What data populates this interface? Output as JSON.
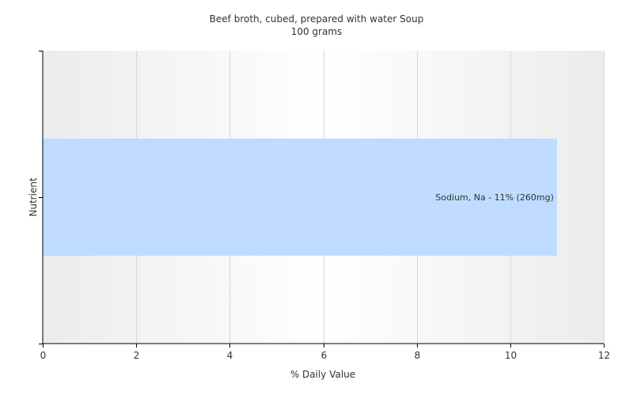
{
  "chart_data": {
    "type": "bar",
    "orientation": "horizontal",
    "title": "Beef broth, cubed, prepared with water Soup",
    "subtitle": "100 grams",
    "xlabel": "% Daily Value",
    "ylabel": "Nutrient",
    "xlim": [
      0,
      12
    ],
    "xticks": [
      0,
      2,
      4,
      6,
      8,
      10,
      12
    ],
    "grid": true,
    "categories": [
      "Sodium, Na"
    ],
    "values": [
      11
    ],
    "data_labels": [
      "Sodium, Na - 11% (260mg)"
    ],
    "colors": {
      "bar": "#bfdbff",
      "plot_background_center": "#ffffff",
      "plot_background_edge": "#ececec",
      "grid": "#d8d8d8",
      "axis": "#000000",
      "text": "#333333"
    }
  }
}
